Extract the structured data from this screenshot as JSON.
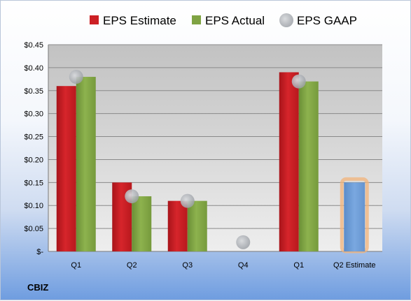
{
  "chart_data": {
    "type": "bar",
    "categories": [
      "Q1",
      "Q2",
      "Q3",
      "Q4",
      "Q1",
      "Q2 Estimate"
    ],
    "series": [
      {
        "name": "EPS Estimate",
        "type": "bar",
        "color": "#cc1f24",
        "values": [
          0.36,
          0.15,
          0.11,
          null,
          0.39,
          null
        ]
      },
      {
        "name": "EPS Actual",
        "type": "bar",
        "color": "#7fa343",
        "values": [
          0.38,
          0.12,
          0.11,
          null,
          0.37,
          null
        ]
      },
      {
        "name": "EPS GAAP",
        "type": "scatter",
        "color": "#b9bcc2",
        "values": [
          0.38,
          0.12,
          0.11,
          0.02,
          0.37,
          null
        ]
      },
      {
        "name": "",
        "type": "bar",
        "color": "#6f9fdb",
        "outline": "#f2b37a",
        "values": [
          null,
          null,
          null,
          null,
          null,
          0.15
        ]
      }
    ],
    "ylim": [
      0,
      0.45
    ],
    "yticks": [
      0,
      0.05,
      0.1,
      0.15,
      0.2,
      0.25,
      0.3,
      0.35,
      0.4,
      0.45
    ],
    "ytick_labels": [
      "$-",
      "$0.05",
      "$0.10",
      "$0.15",
      "$0.20",
      "$0.25",
      "$0.30",
      "$0.35",
      "$0.40",
      "$0.45"
    ],
    "legend_position": "top",
    "grid": true,
    "company": "CBIZ"
  }
}
